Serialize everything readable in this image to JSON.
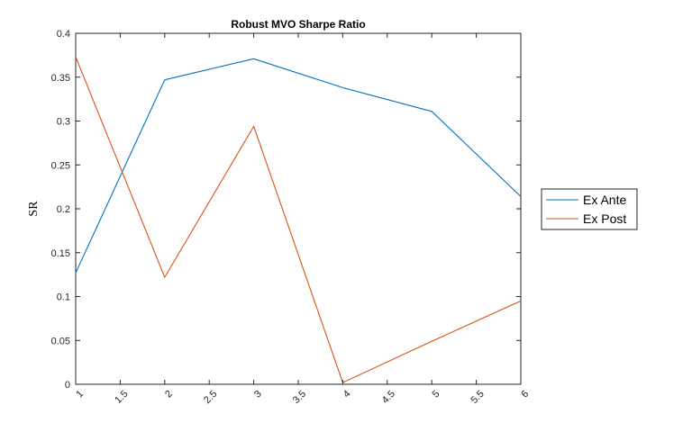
{
  "chart_data": {
    "type": "line",
    "title": "Robust MVO Sharpe Ratio",
    "xlabel": "",
    "ylabel": "SR",
    "xlim": [
      1,
      6
    ],
    "ylim": [
      0,
      0.4
    ],
    "xticks": [
      1,
      1.5,
      2,
      2.5,
      3,
      3.5,
      4,
      4.5,
      5,
      5.5,
      6
    ],
    "xtick_labels": [
      "1",
      "1.5",
      "2",
      "2.5",
      "3",
      "3.5",
      "4",
      "4.5",
      "5",
      "5.5",
      "6"
    ],
    "yticks": [
      0,
      0.05,
      0.1,
      0.15,
      0.2,
      0.25,
      0.3,
      0.35,
      0.4
    ],
    "ytick_labels": [
      "0",
      "0.05",
      "0.1",
      "0.15",
      "0.2",
      "0.25",
      "0.3",
      "0.35",
      "0.4"
    ],
    "x": [
      1,
      2,
      3,
      4,
      5,
      6
    ],
    "series": [
      {
        "name": "Ex Ante",
        "color": "#0072BD",
        "values": [
          0.127,
          0.347,
          0.371,
          0.338,
          0.311,
          0.214
        ]
      },
      {
        "name": "Ex Post",
        "color": "#D95319",
        "values": [
          0.373,
          0.122,
          0.294,
          0.002,
          0.049,
          0.095
        ]
      }
    ],
    "grid": false,
    "legend_position": "outside-right"
  }
}
